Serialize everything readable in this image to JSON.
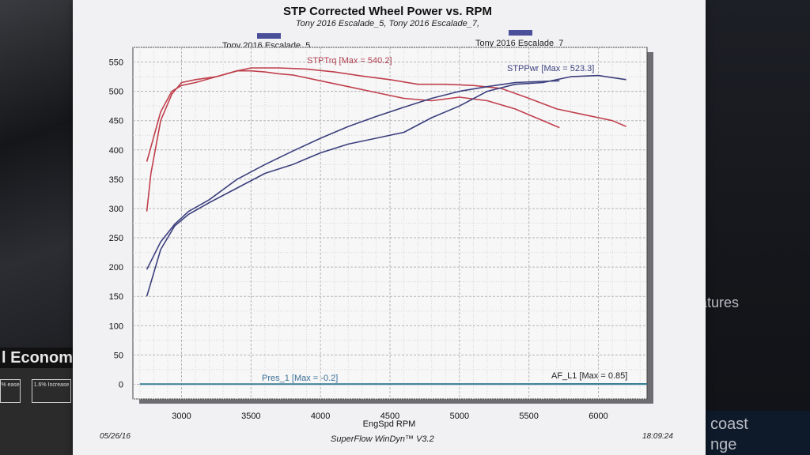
{
  "chart_data": {
    "type": "line",
    "title": "STP Corrected Wheel Power vs. RPM",
    "subtitle": "Tony 2016 Escalade_5, Tony 2016 Escalade_7,",
    "xlabel": "EngSpd RPM",
    "ylabel": "",
    "xlim": [
      2650,
      6350
    ],
    "ylim": [
      -25,
      575
    ],
    "x_ticks": [
      "3000",
      "3500",
      "4000",
      "4500",
      "5000",
      "5500",
      "6000"
    ],
    "y_ticks": [
      "550",
      "500",
      "450",
      "400",
      "350",
      "300",
      "250",
      "200",
      "150",
      "100",
      "50",
      "0"
    ],
    "legend": [
      {
        "name": "Tony 2016 Escalade_5",
        "color": "#4a4f9a"
      },
      {
        "name": "Tony 2016 Escalade_7",
        "color": "#4a4f9a"
      }
    ],
    "annotations": {
      "trq": "STPTrq [Max = 540.2]",
      "pwr": "STPPwr [Max = 523.3]",
      "pres": "Pres_1 [Max = -0.2]",
      "af": "AF_L1  [Max = 0.85]"
    },
    "series": [
      {
        "name": "STPTrq Escalade_5",
        "color": "#c0404c",
        "x": [
          2750,
          2780,
          2850,
          2930,
          3000,
          3100,
          3250,
          3400,
          3500,
          3600,
          3700,
          3800,
          4000,
          4200,
          4400,
          4600,
          4800,
          5000,
          5200,
          5400,
          5550,
          5720
        ],
        "y": [
          380,
          405,
          465,
          500,
          510,
          515,
          525,
          535,
          535,
          533,
          530,
          528,
          518,
          508,
          498,
          488,
          484,
          490,
          484,
          470,
          455,
          438
        ]
      },
      {
        "name": "STPTrq Escalade_7",
        "color": "#c0404c",
        "x": [
          2750,
          2780,
          2850,
          2930,
          3000,
          3100,
          3250,
          3400,
          3500,
          3700,
          3900,
          4100,
          4300,
          4500,
          4700,
          4900,
          5100,
          5300,
          5500,
          5700,
          5900,
          6100,
          6200
        ],
        "y": [
          295,
          360,
          450,
          495,
          515,
          520,
          525,
          535,
          540,
          540,
          538,
          533,
          526,
          520,
          512,
          512,
          510,
          505,
          488,
          470,
          460,
          450,
          440
        ]
      },
      {
        "name": "STPPwr Escalade_5",
        "color": "#3b3f7c",
        "x": [
          2750,
          2850,
          2950,
          3050,
          3200,
          3400,
          3600,
          3800,
          4000,
          4200,
          4400,
          4600,
          4800,
          5000,
          5200,
          5400,
          5600,
          5720
        ],
        "y": [
          196,
          243,
          273,
          295,
          315,
          350,
          375,
          398,
          420,
          440,
          457,
          473,
          488,
          500,
          508,
          515,
          517,
          518
        ]
      },
      {
        "name": "STPPwr Escalade_7",
        "color": "#3b3f7c",
        "x": [
          2750,
          2850,
          2950,
          3050,
          3200,
          3400,
          3600,
          3800,
          4000,
          4200,
          4400,
          4600,
          4800,
          5000,
          5200,
          5400,
          5600,
          5800,
          6000,
          6200
        ],
        "y": [
          150,
          230,
          270,
          290,
          310,
          335,
          360,
          375,
          395,
          410,
          420,
          430,
          455,
          475,
          500,
          512,
          515,
          525,
          527,
          520
        ]
      },
      {
        "name": "Pres_1",
        "color": "#3a7f95",
        "x": [
          2700,
          6350
        ],
        "y": [
          0,
          0
        ]
      },
      {
        "name": "AF_L1",
        "color": "#3a7f95",
        "x": [
          2700,
          6350
        ],
        "y": [
          0.5,
          0.85
        ]
      }
    ],
    "footer": {
      "date": "05/26/16",
      "software": "SuperFlow WinDyn™ V3.2",
      "time": "18:09:24"
    }
  },
  "background": {
    "left_banner": "l Econom",
    "left_tag_1": "% ease",
    "left_tag_2": "1.6% Increase",
    "right_text_1": "atures",
    "right_text_2": "coast",
    "right_text_3": "nge"
  }
}
